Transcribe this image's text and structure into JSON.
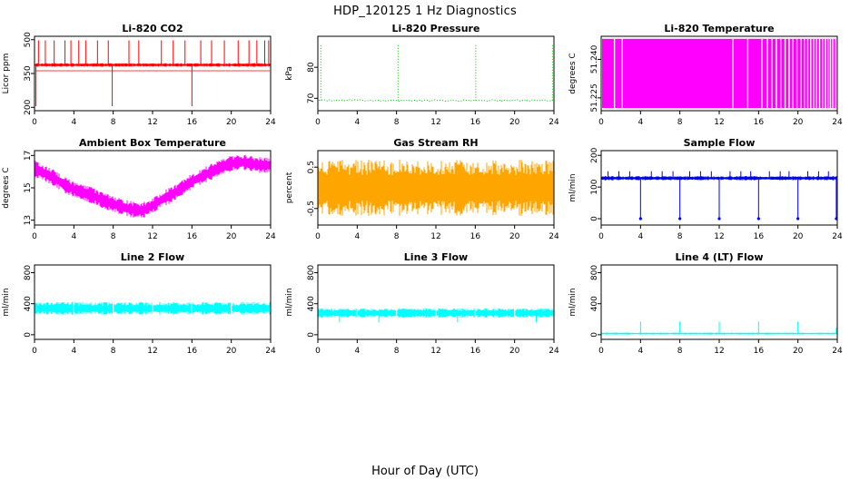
{
  "page": {
    "title": "HDP_120125 1 Hz Diagnostics",
    "xlabel": "Hour of Day (UTC)"
  },
  "chart_data": [
    {
      "name": "li820-co2",
      "type": "line",
      "title": "Li-820 CO2",
      "ylabel": "Licor ppm",
      "color": "#ff0000",
      "xlim": [
        0,
        24
      ],
      "xticks": [
        0,
        4,
        8,
        12,
        16,
        20,
        24
      ],
      "ylim": [
        185,
        515
      ],
      "yticks": [
        200,
        350,
        500
      ],
      "ytick_labels": [
        "200",
        "350",
        "500"
      ],
      "pattern": {
        "kind": "baseline-spikes",
        "baseline": 388,
        "noise": 7,
        "secondary": 362,
        "spikes_up": {
          "times": [
            0.4,
            1.1,
            2.0,
            3.1,
            3.7,
            4.5,
            5.2,
            6.4,
            7.5,
            9.6,
            10.6,
            12.9,
            14.1,
            15.3,
            16.9,
            18.0,
            19.3,
            20.7,
            21.8,
            22.6,
            23.4,
            23.8
          ],
          "value": 497
        },
        "spikes_down": {
          "times": [
            0.15,
            7.9,
            16.0
          ],
          "value": 205
        }
      }
    },
    {
      "name": "li820-pressure",
      "type": "line",
      "title": "Li-820 Pressure",
      "ylabel": "kPa",
      "color": "#00c000",
      "xlim": [
        0,
        24
      ],
      "xticks": [
        0,
        4,
        8,
        12,
        16,
        20,
        24
      ],
      "ylim": [
        66,
        90
      ],
      "yticks": [
        70,
        80
      ],
      "ytick_labels": [
        "70",
        "80"
      ],
      "pattern": {
        "kind": "dotted-line",
        "baseline": 69.3,
        "noise": 0.5,
        "dotted": true,
        "spikes_up": {
          "times": [
            0.3,
            8.15,
            16.05,
            23.85
          ],
          "value": 87.5
        }
      }
    },
    {
      "name": "li820-temperature",
      "type": "line",
      "title": "Li-820 Temperature",
      "ylabel": "degrees C",
      "color": "#ff00ff",
      "xlim": [
        0,
        24
      ],
      "xticks": [
        0,
        4,
        8,
        12,
        16,
        20,
        24
      ],
      "ylim": [
        51.22,
        51.249
      ],
      "yticks": [
        51.225,
        51.24
      ],
      "ytick_labels": [
        "51.225",
        "51.240"
      ],
      "pattern": {
        "kind": "dense-band",
        "band": [
          51.221,
          51.248
        ],
        "gaps": [
          1.35,
          2.15,
          13.4,
          14.9,
          16.35,
          16.9,
          17.35,
          17.8,
          18.25,
          18.7,
          19.1,
          19.5,
          19.9,
          20.3,
          20.65,
          21.0,
          21.3,
          21.6,
          21.9,
          22.2,
          22.5,
          22.8,
          23.05,
          23.3,
          23.55,
          23.8
        ]
      }
    },
    {
      "name": "ambient-box-temperature",
      "type": "line",
      "title": "Ambient Box Temperature",
      "ylabel": "degrees C",
      "color": "#ff00ff",
      "xlim": [
        0,
        24
      ],
      "xticks": [
        0,
        4,
        8,
        12,
        16,
        20,
        24
      ],
      "ylim": [
        12.7,
        17.3
      ],
      "yticks": [
        13,
        15,
        17
      ],
      "ytick_labels": [
        "13",
        "15",
        "17"
      ],
      "pattern": {
        "kind": "noisy-curve",
        "noise": 0.45,
        "keypoints": [
          [
            0,
            16.2
          ],
          [
            1,
            15.9
          ],
          [
            2,
            15.6
          ],
          [
            3,
            15.2
          ],
          [
            4,
            14.9
          ],
          [
            5,
            14.7
          ],
          [
            6,
            14.5
          ],
          [
            7,
            14.2
          ],
          [
            8,
            14.0
          ],
          [
            9,
            13.8
          ],
          [
            10,
            13.65
          ],
          [
            11,
            13.6
          ],
          [
            12,
            13.9
          ],
          [
            13,
            14.3
          ],
          [
            14,
            14.6
          ],
          [
            15,
            15.0
          ],
          [
            16,
            15.4
          ],
          [
            17,
            15.7
          ],
          [
            18,
            16.0
          ],
          [
            19,
            16.3
          ],
          [
            20,
            16.5
          ],
          [
            21,
            16.6
          ],
          [
            22,
            16.5
          ],
          [
            23,
            16.4
          ],
          [
            24,
            16.4
          ]
        ]
      }
    },
    {
      "name": "gas-stream-rh",
      "type": "line",
      "title": "Gas Stream RH",
      "ylabel": "percent",
      "color": "#ffa500",
      "xlim": [
        0,
        24
      ],
      "xticks": [
        0,
        4,
        8,
        12,
        16,
        20,
        24
      ],
      "ylim": [
        -0.9,
        0.9
      ],
      "yticks": [
        -0.5,
        0.5
      ],
      "ytick_labels": [
        "-0.5",
        "0.5"
      ],
      "pattern": {
        "kind": "noisy-band",
        "baseline": 0,
        "noise": 0.62
      }
    },
    {
      "name": "sample-flow",
      "type": "line",
      "title": "Sample Flow",
      "ylabel": "ml/min",
      "color": "#0000ff",
      "xlim": [
        0,
        24
      ],
      "xticks": [
        0,
        4,
        8,
        12,
        16,
        20,
        24
      ],
      "ylim": [
        -20,
        215
      ],
      "yticks": [
        0,
        100,
        200
      ],
      "ytick_labels": [
        "0",
        "100",
        "200"
      ],
      "pattern": {
        "kind": "noisy-band",
        "baseline": 128,
        "noise": 6,
        "spikes_up": {
          "times": [
            0.7,
            1.8,
            2.9,
            5.1,
            6.2,
            7.3,
            9.0,
            10.1,
            11.2,
            13.1,
            14.2,
            15.2,
            17.1,
            18.2,
            19.1,
            21.0,
            22.1,
            23.1
          ],
          "value": 150
        },
        "spikes_down": {
          "times": [
            4,
            8,
            12,
            16,
            20,
            23.9
          ],
          "value": 0,
          "dots": true
        }
      }
    },
    {
      "name": "line-2-flow",
      "type": "line",
      "title": "Line 2 Flow",
      "ylabel": "ml/min",
      "color": "#00ffff",
      "xlim": [
        0,
        24
      ],
      "xticks": [
        0,
        4,
        8,
        12,
        16,
        20,
        24
      ],
      "ylim": [
        -60,
        900
      ],
      "yticks": [
        0,
        400,
        800
      ],
      "ytick_labels": [
        "0",
        "400",
        "800"
      ],
      "pattern": {
        "kind": "noisy-band",
        "baseline": 340,
        "noise": 75,
        "gaps": [
          4,
          8,
          12,
          16,
          20
        ]
      }
    },
    {
      "name": "line-3-flow",
      "type": "line",
      "title": "Line 3 Flow",
      "ylabel": "ml/min",
      "color": "#00ffff",
      "xlim": [
        0,
        24
      ],
      "xticks": [
        0,
        4,
        8,
        12,
        16,
        20,
        24
      ],
      "ylim": [
        -60,
        900
      ],
      "yticks": [
        0,
        400,
        800
      ],
      "ytick_labels": [
        "0",
        "400",
        "800"
      ],
      "pattern": {
        "kind": "noisy-band",
        "baseline": 280,
        "noise": 55,
        "gaps": [
          4,
          8,
          12,
          16,
          20
        ],
        "spikes_down": {
          "times": [
            2.2,
            6.2,
            14.2,
            22.2
          ],
          "value": 160
        }
      }
    },
    {
      "name": "line-4-lt-flow",
      "type": "line",
      "title": "Line 4 (LT) Flow",
      "ylabel": "ml/min",
      "color": "#00ffff",
      "xlim": [
        0,
        24
      ],
      "xticks": [
        0,
        4,
        8,
        12,
        16,
        20,
        24
      ],
      "ylim": [
        -60,
        900
      ],
      "yticks": [
        0,
        400,
        800
      ],
      "ytick_labels": [
        "0",
        "400",
        "800"
      ],
      "pattern": {
        "kind": "noisy-band",
        "baseline": 15,
        "noise": 12,
        "spikes_up": {
          "times": [
            4,
            8,
            12,
            16,
            20
          ],
          "value": 170
        },
        "spikes_up2": {
          "times": [
            23.9
          ],
          "value": 90
        }
      }
    }
  ]
}
